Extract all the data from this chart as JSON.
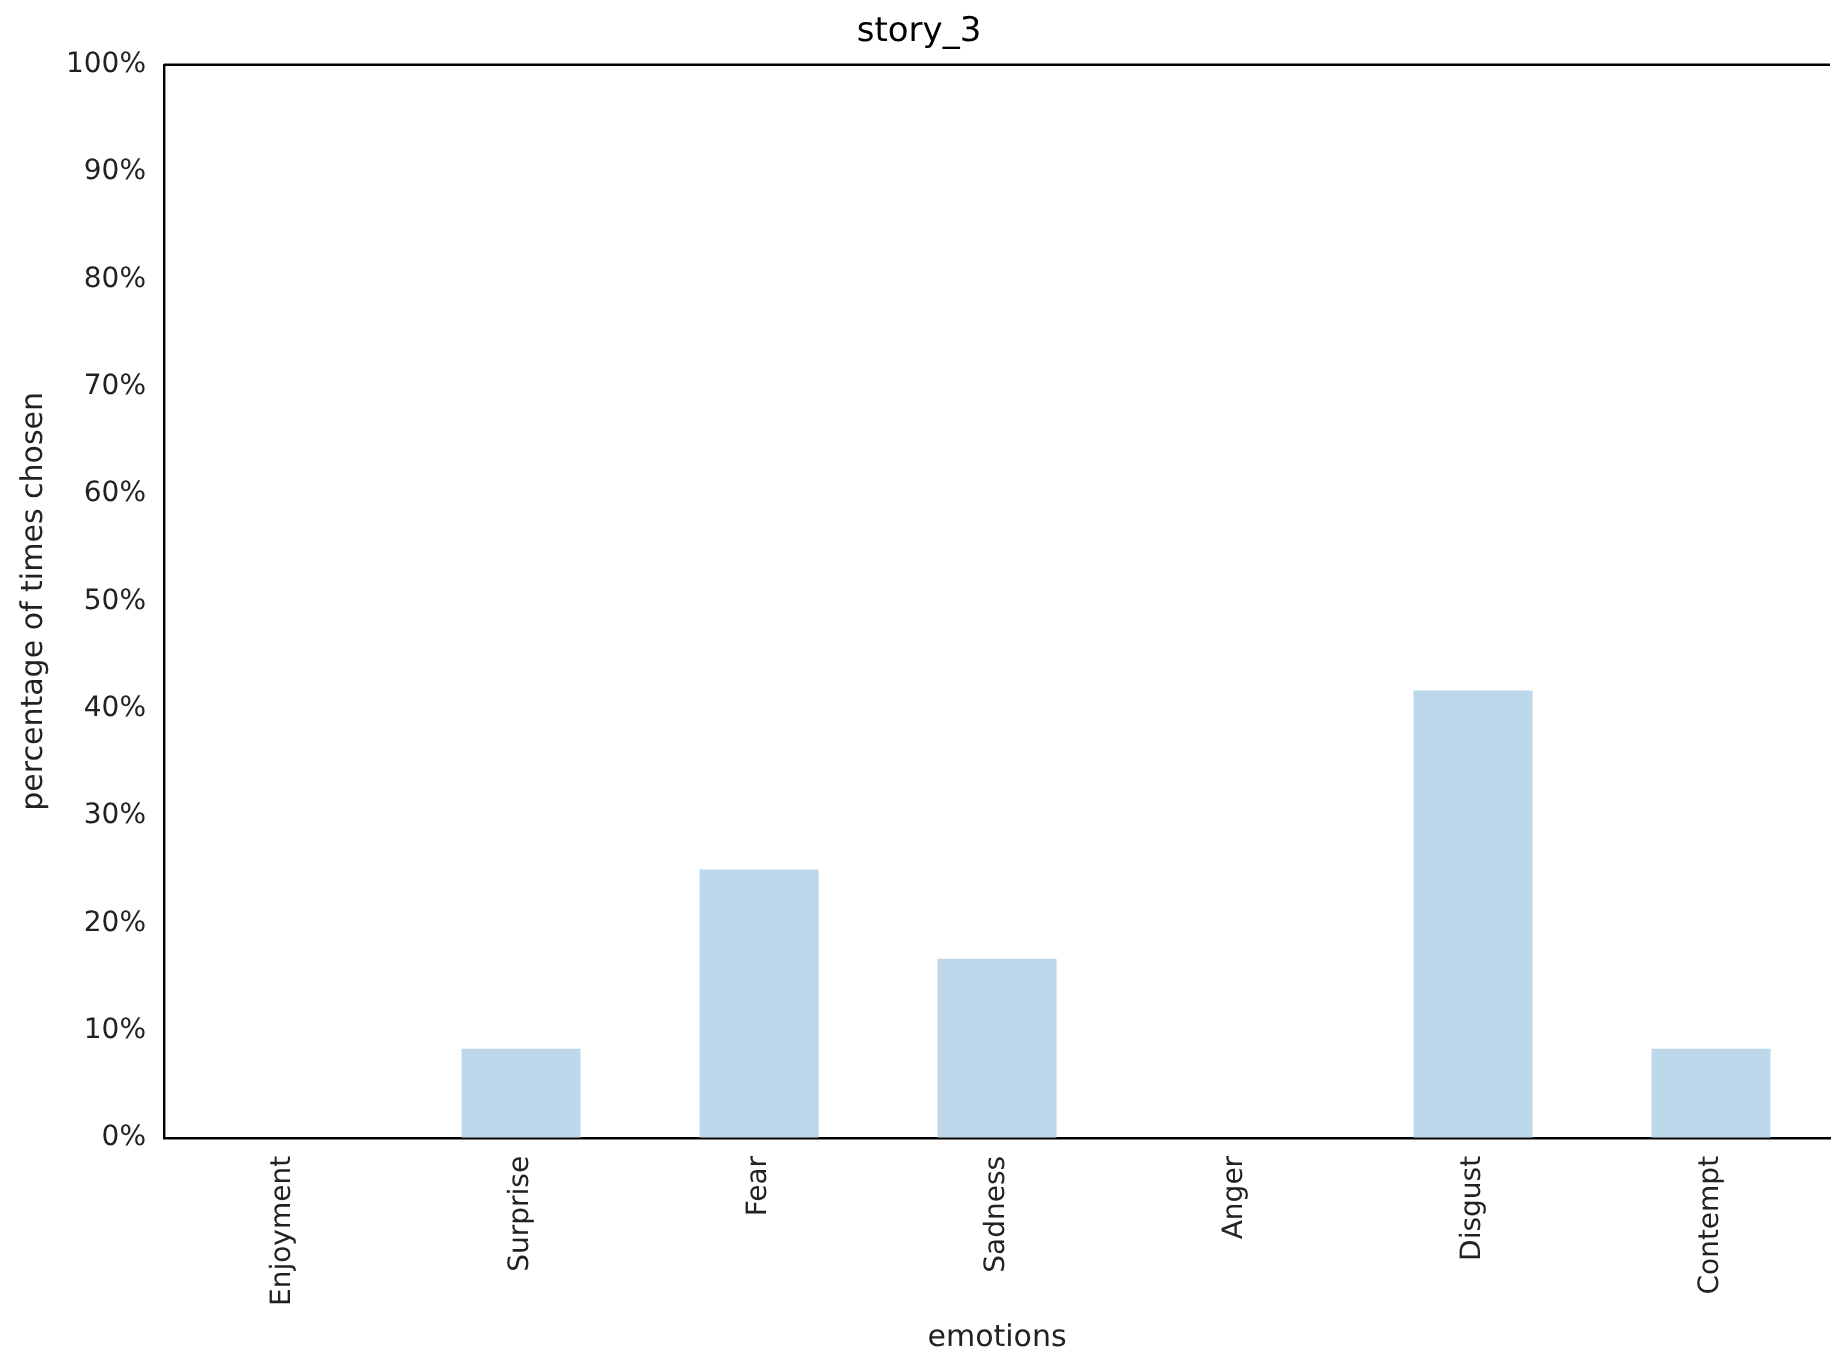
{
  "chart_data": {
    "type": "bar",
    "title": "story_3",
    "xlabel": "emotions",
    "ylabel": "percentage of times chosen",
    "categories": [
      "Enjoyment",
      "Surprise",
      "Fear",
      "Sadness",
      "Anger",
      "Disgust",
      "Contempt"
    ],
    "values": [
      0,
      8.3,
      25,
      16.7,
      0,
      41.7,
      8.3
    ],
    "color": "#bdd7ea",
    "ylim": [
      0,
      100
    ],
    "yticks": [
      {
        "value": 0,
        "label": "0%"
      },
      {
        "value": 10,
        "label": "10%"
      },
      {
        "value": 20,
        "label": "20%"
      },
      {
        "value": 30,
        "label": "30%"
      },
      {
        "value": 40,
        "label": "40%"
      },
      {
        "value": 50,
        "label": "50%"
      },
      {
        "value": 60,
        "label": "60%"
      },
      {
        "value": 70,
        "label": "70%"
      },
      {
        "value": 80,
        "label": "80%"
      },
      {
        "value": 90,
        "label": "90%"
      },
      {
        "value": 100,
        "label": "100%"
      }
    ],
    "grid": false,
    "legend": false
  }
}
